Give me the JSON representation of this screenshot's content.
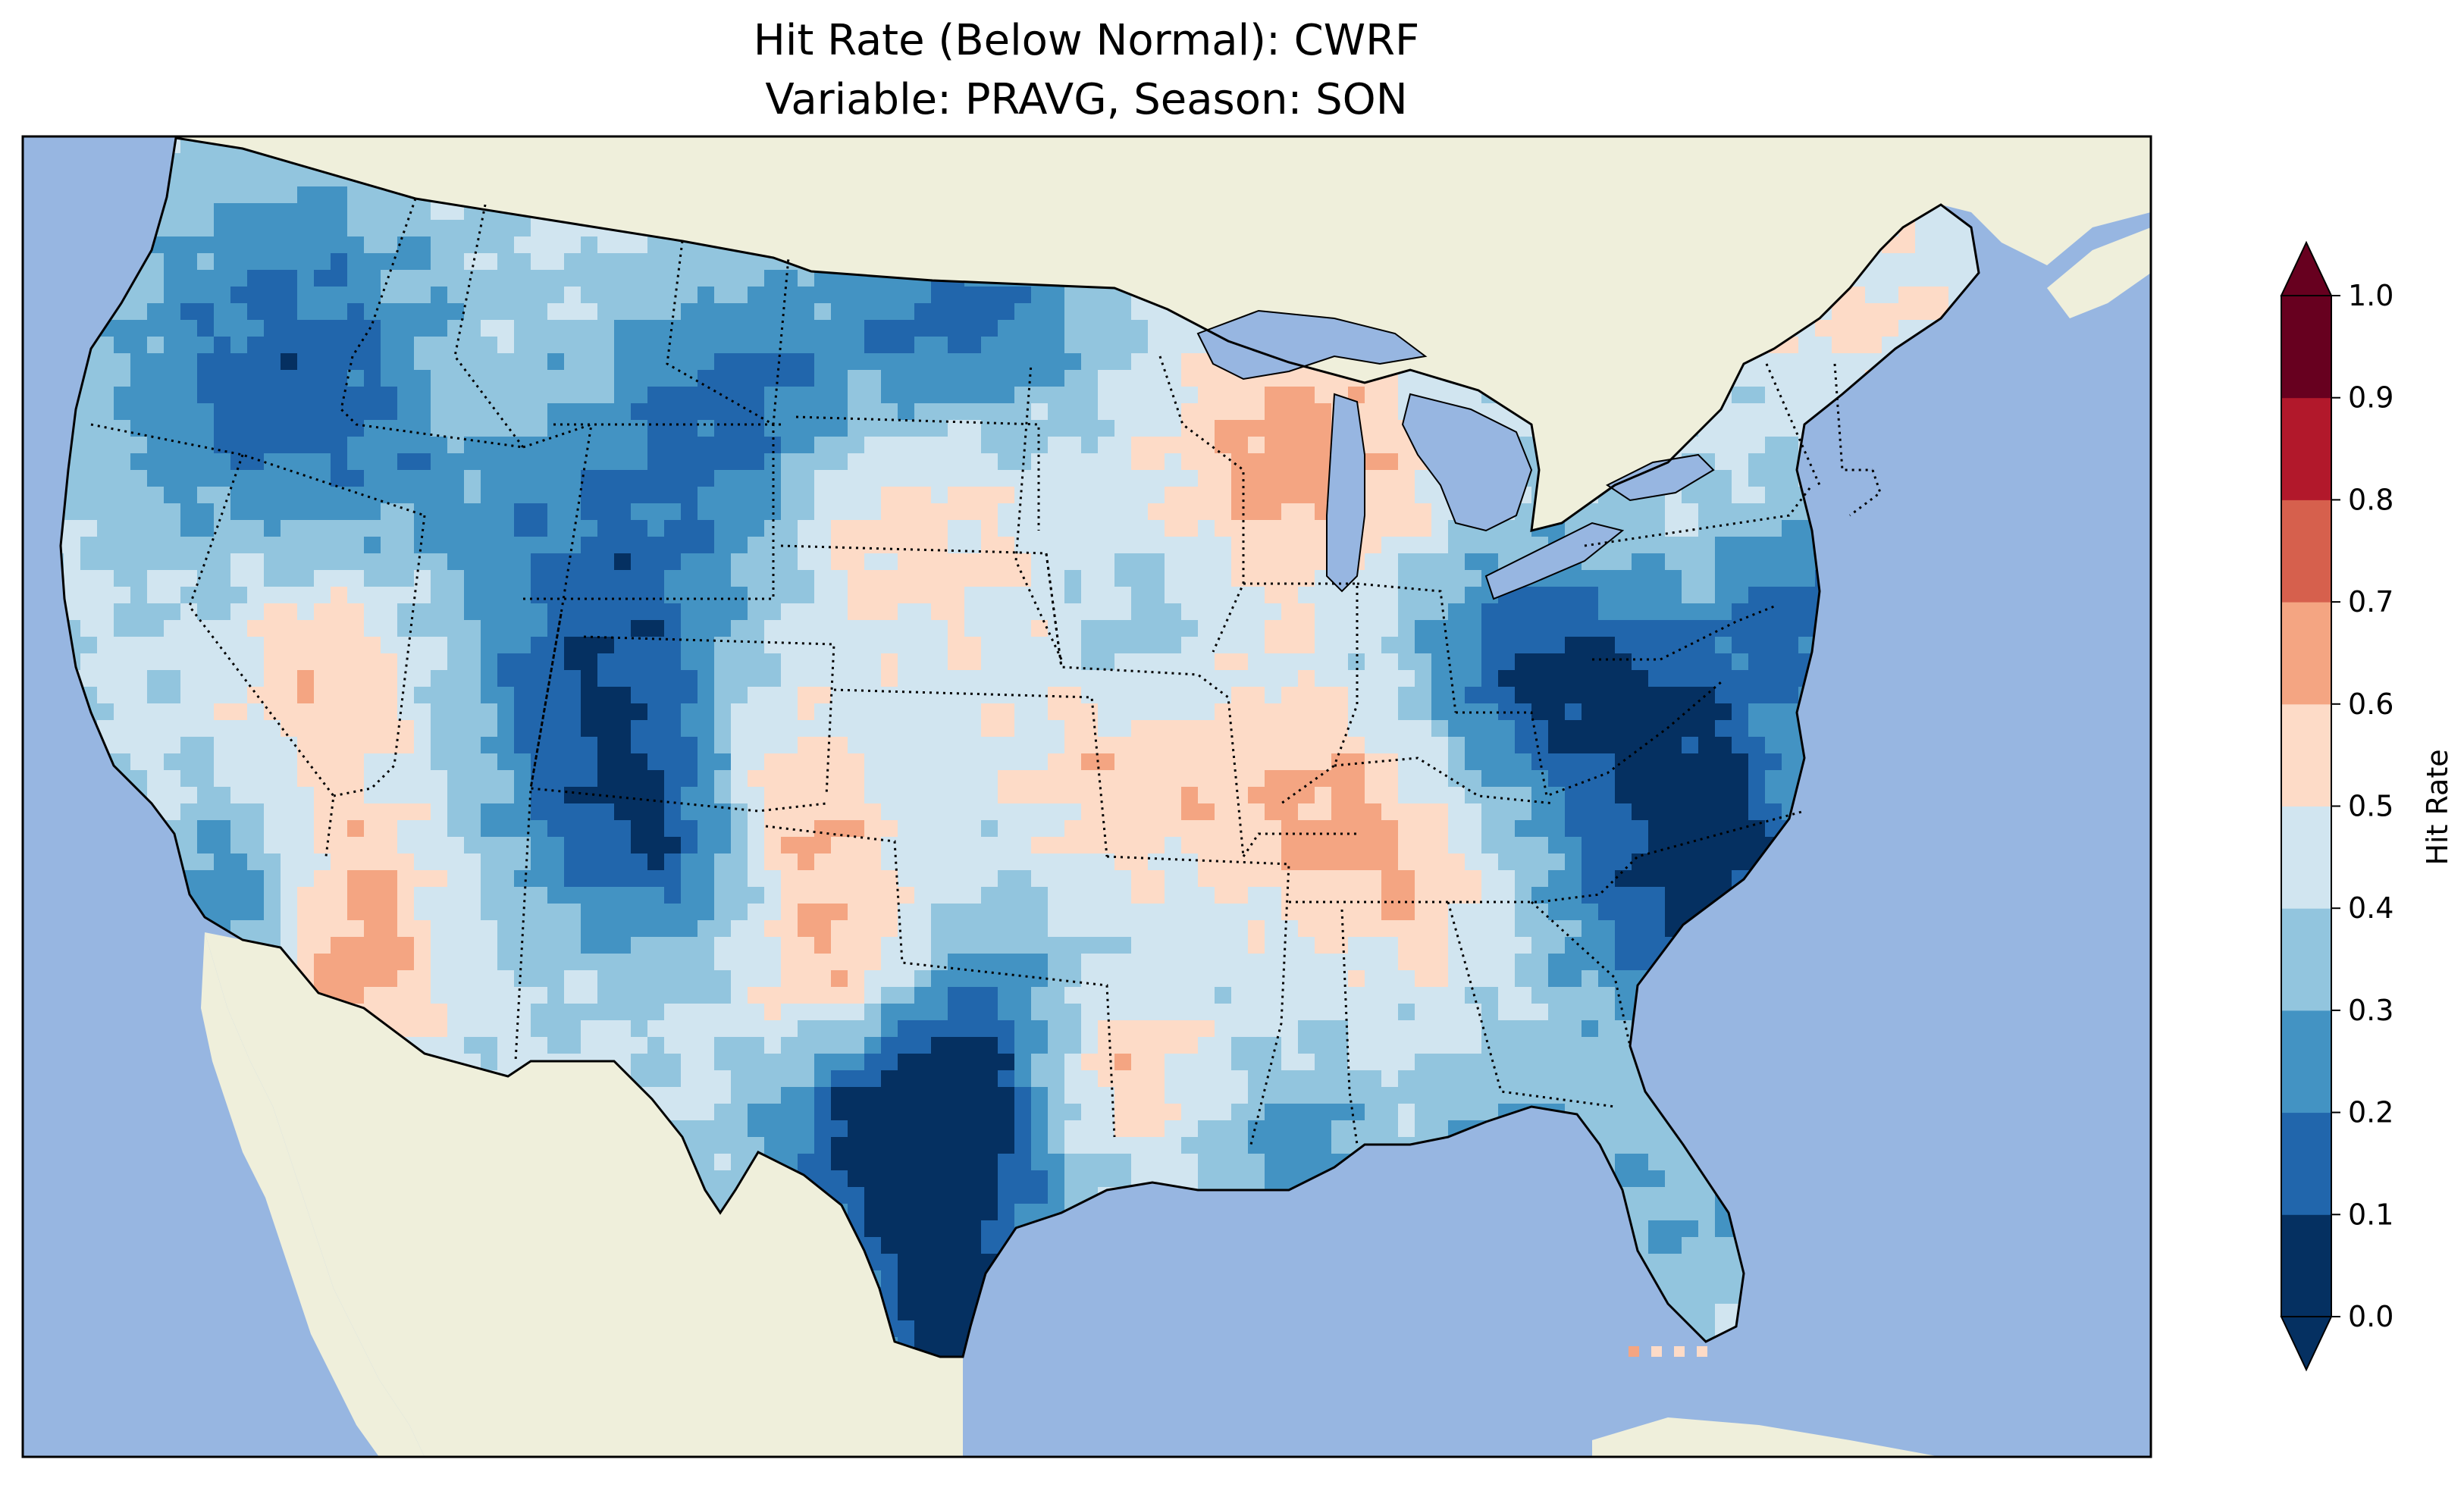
{
  "figure": {
    "title_line1": "Hit Rate (Below Normal): CWRF",
    "title_line2": "Variable: PRAVG, Season: SON"
  },
  "map": {
    "ocean_color": "#97b6e1",
    "land_color": "#efefdb",
    "lake_color": "#97b6e1",
    "coastline_color": "#000000",
    "border_style": "dotted"
  },
  "colorbar": {
    "label": "Hit Rate",
    "ticks": [
      "0.0",
      "0.1",
      "0.2",
      "0.3",
      "0.4",
      "0.5",
      "0.6",
      "0.7",
      "0.8",
      "0.9",
      "1.0"
    ],
    "colors": [
      "#053061",
      "#2166ac",
      "#4393c3",
      "#92c5de",
      "#d1e5f0",
      "#fddbc7",
      "#f4a582",
      "#d6604d",
      "#b2182b",
      "#67001f"
    ],
    "extend": "both"
  }
}
